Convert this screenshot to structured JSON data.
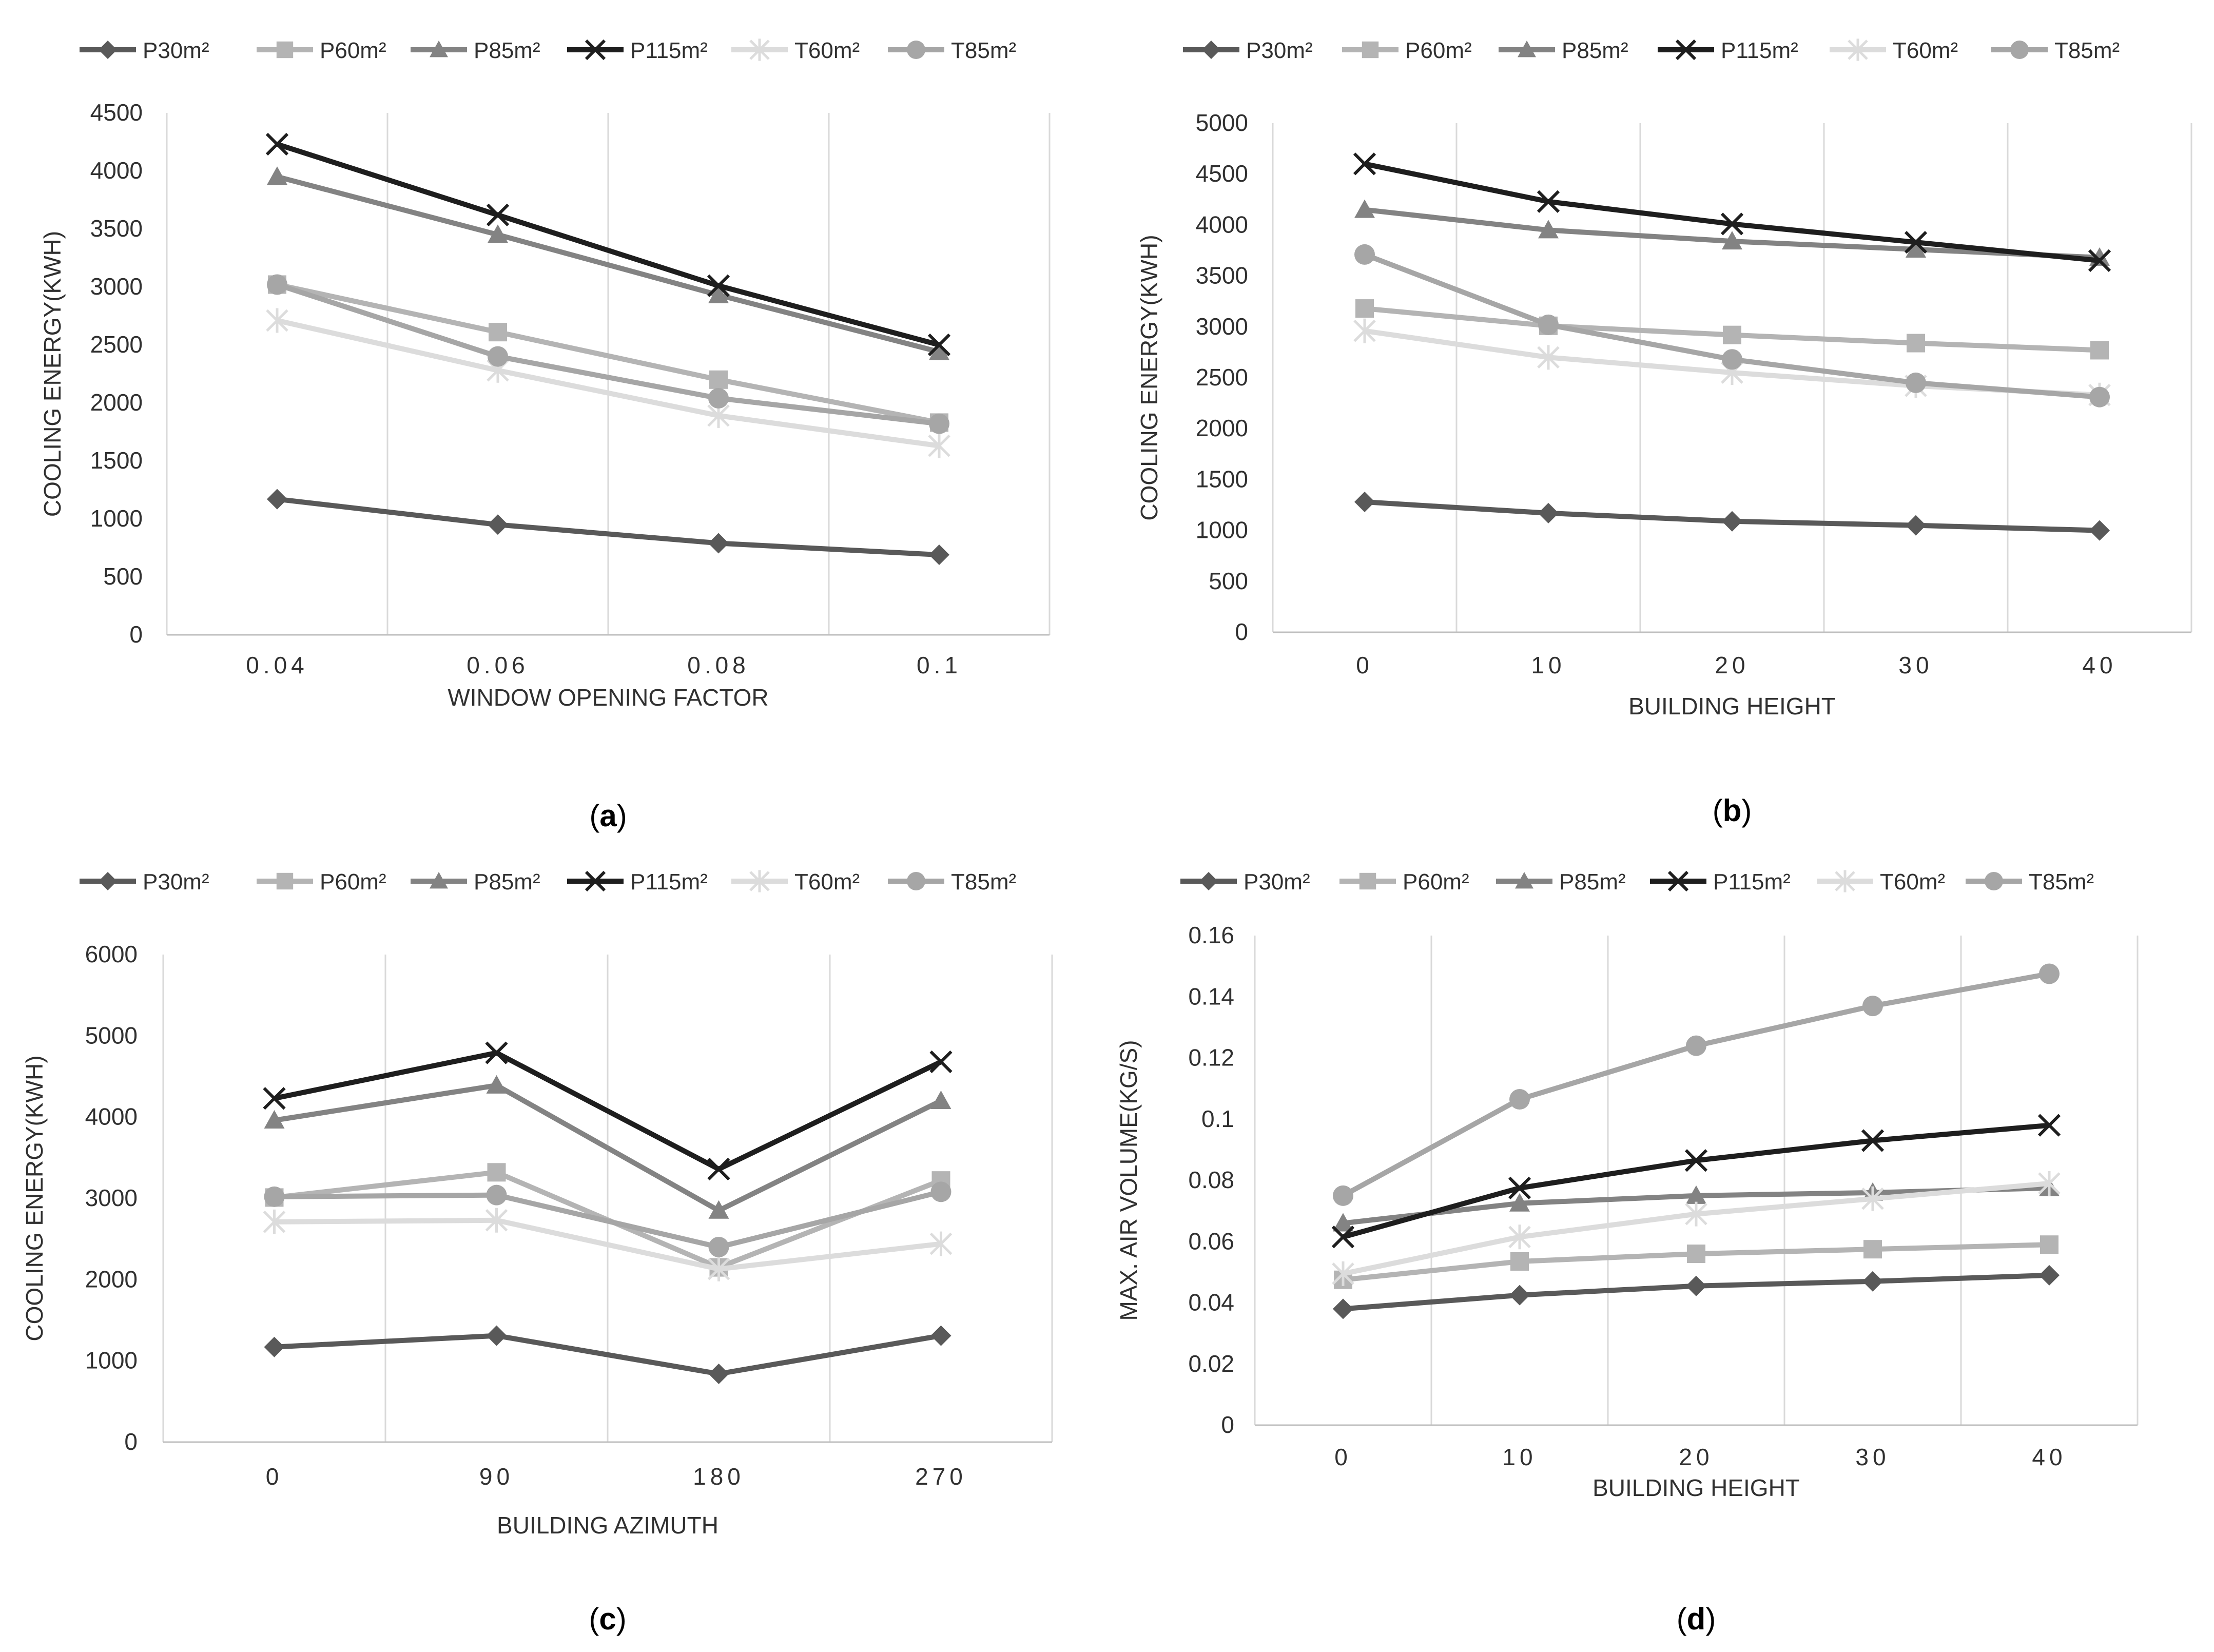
{
  "series_styles": [
    {
      "name": "P30m²",
      "color": "#595959",
      "marker": "diamond"
    },
    {
      "name": "P60m²",
      "color": "#b4b4b4",
      "marker": "square"
    },
    {
      "name": "P85m²",
      "color": "#838383",
      "marker": "triangle"
    },
    {
      "name": "P115m²",
      "color": "#1e1e1e",
      "marker": "x"
    },
    {
      "name": "T60m²",
      "color": "#dcdcdc",
      "marker": "star"
    },
    {
      "name": "T85m²",
      "color": "#a6a6a6",
      "marker": "circle"
    }
  ],
  "chart_data": [
    {
      "type": "line",
      "caption": "(a)",
      "xlabel": "WINDOW OPENING FACTOR",
      "ylabel": "COOLING ENERGY(KWH)",
      "categories": [
        "0.04",
        "0.06",
        "0.08",
        "0.1"
      ],
      "yticks": [
        "0",
        "500",
        "1000",
        "1500",
        "2000",
        "2500",
        "3000",
        "3500",
        "4000",
        "4500"
      ],
      "ylim": [
        0,
        4500
      ],
      "legend": [
        "P30m²",
        "P60m²",
        "P85m²",
        "P115m²",
        "T60m²",
        "T85m²"
      ],
      "series": [
        {
          "name": "P30m²",
          "values": [
            1170,
            950,
            790,
            690
          ]
        },
        {
          "name": "P60m²",
          "values": [
            3020,
            2610,
            2200,
            1830
          ]
        },
        {
          "name": "P85m²",
          "values": [
            3950,
            3450,
            2930,
            2440
          ]
        },
        {
          "name": "P115m²",
          "values": [
            4230,
            3620,
            3010,
            2500
          ]
        },
        {
          "name": "T60m²",
          "values": [
            2710,
            2280,
            1890,
            1630
          ]
        },
        {
          "name": "T85m²",
          "values": [
            3020,
            2400,
            2040,
            1820
          ]
        }
      ]
    },
    {
      "type": "line",
      "caption": "(b)",
      "xlabel": "BUILDING HEIGHT",
      "ylabel": "COOLING ENERGY(KWH)",
      "categories": [
        "0",
        "10",
        "20",
        "30",
        "40"
      ],
      "yticks": [
        "0",
        "500",
        "1000",
        "1500",
        "2000",
        "2500",
        "3000",
        "3500",
        "4000",
        "4500",
        "5000"
      ],
      "ylim": [
        0,
        5000
      ],
      "legend": [
        "P30m²",
        "P60m²",
        "P85m²",
        "P115m²",
        "T60m²",
        "T85m²"
      ],
      "series": [
        {
          "name": "P30m²",
          "values": [
            1280,
            1170,
            1090,
            1050,
            1000
          ]
        },
        {
          "name": "P60m²",
          "values": [
            3180,
            3010,
            2920,
            2840,
            2770
          ]
        },
        {
          "name": "P85m²",
          "values": [
            4150,
            3950,
            3840,
            3760,
            3680
          ]
        },
        {
          "name": "P115m²",
          "values": [
            4600,
            4230,
            4010,
            3830,
            3650
          ]
        },
        {
          "name": "T60m²",
          "values": [
            2960,
            2700,
            2550,
            2420,
            2330
          ]
        },
        {
          "name": "T85m²",
          "values": [
            3710,
            3020,
            2680,
            2450,
            2310
          ]
        }
      ]
    },
    {
      "type": "line",
      "caption": "(c)",
      "xlabel": "BUILDING AZIMUTH",
      "ylabel": "COOLING ENERGY(KWH)",
      "categories": [
        "0",
        "90",
        "180",
        "270"
      ],
      "yticks": [
        "0",
        "1000",
        "2000",
        "3000",
        "4000",
        "5000",
        "6000"
      ],
      "ylim": [
        0,
        6000
      ],
      "legend": [
        "P30m²",
        "P60m²",
        "P85m²",
        "P115m²",
        "T60m²",
        "T85m²"
      ],
      "series": [
        {
          "name": "P30m²",
          "values": [
            1170,
            1310,
            840,
            1310
          ]
        },
        {
          "name": "P60m²",
          "values": [
            3010,
            3320,
            2150,
            3220
          ]
        },
        {
          "name": "P85m²",
          "values": [
            3960,
            4390,
            2850,
            4200
          ]
        },
        {
          "name": "P115m²",
          "values": [
            4230,
            4790,
            3360,
            4680
          ]
        },
        {
          "name": "T60m²",
          "values": [
            2710,
            2730,
            2130,
            2440
          ]
        },
        {
          "name": "T85m²",
          "values": [
            3020,
            3040,
            2400,
            3080
          ]
        }
      ]
    },
    {
      "type": "line",
      "caption": "(d)",
      "xlabel": "BUILDING HEIGHT",
      "ylabel": "MAX.  AIR VOLUME(KG/S)",
      "categories": [
        "0",
        "10",
        "20",
        "30",
        "40"
      ],
      "yticks": [
        "0",
        "0.02",
        "0.04",
        "0.06",
        "0.08",
        "0.1",
        "0.12",
        "0.14",
        "0.16"
      ],
      "ylim": [
        0,
        0.16
      ],
      "legend": [
        "P30m²",
        "P60m²",
        "P85m²",
        "P115m²",
        "T60m²",
        "T85m²"
      ],
      "series": [
        {
          "name": "P30m²",
          "values": [
            0.038,
            0.0425,
            0.0455,
            0.047,
            0.049
          ]
        },
        {
          "name": "P60m²",
          "values": [
            0.0475,
            0.0535,
            0.056,
            0.0575,
            0.059
          ]
        },
        {
          "name": "P85m²",
          "values": [
            0.066,
            0.0725,
            0.075,
            0.076,
            0.0775
          ]
        },
        {
          "name": "P115m²",
          "values": [
            0.0615,
            0.0775,
            0.0865,
            0.093,
            0.098
          ]
        },
        {
          "name": "T60m²",
          "values": [
            0.0495,
            0.0615,
            0.069,
            0.074,
            0.079
          ]
        },
        {
          "name": "T85m²",
          "values": [
            0.075,
            0.1065,
            0.124,
            0.137,
            0.1475
          ]
        }
      ]
    }
  ]
}
